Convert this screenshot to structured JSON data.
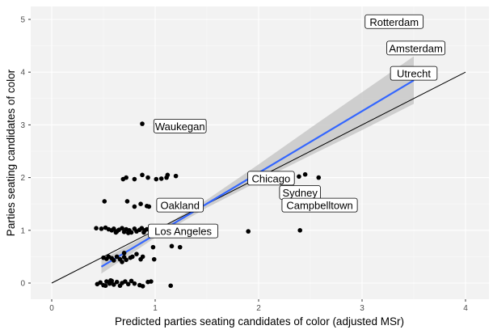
{
  "chart_data": {
    "type": "scatter",
    "title": "",
    "xlabel": "Predicted parties seating candidates of color (adjusted MSr)",
    "ylabel": "Parties seating candidates of color",
    "xlim": [
      -0.1,
      4.1
    ],
    "ylim": [
      -0.3,
      5.25
    ],
    "xticks": [
      "0",
      "1",
      "2",
      "3",
      "4"
    ],
    "yticks": [
      "0",
      "1",
      "2",
      "3",
      "4",
      "5"
    ],
    "grid": true,
    "background": "#f2f2f2",
    "colors": {
      "points": "#000000",
      "smooth": "#3366ff",
      "band": "#c8c8c8",
      "identity": "#000000"
    },
    "identity_line": {
      "x": [
        0,
        4
      ],
      "y": [
        0,
        4
      ]
    },
    "smooth": {
      "x": [
        0.48,
        1,
        1.5,
        2,
        2.5,
        3,
        3.5
      ],
      "y": [
        0.31,
        0.92,
        1.505,
        2.09,
        2.675,
        3.26,
        3.845
      ],
      "lower": [
        0.18,
        0.86,
        1.43,
        1.93,
        2.42,
        2.9,
        3.4
      ],
      "upper": [
        0.44,
        0.98,
        1.58,
        2.25,
        2.94,
        3.62,
        4.3
      ]
    },
    "points": [
      [
        0.69,
        1.97
      ],
      [
        0.72,
        2.0
      ],
      [
        0.8,
        1.97
      ],
      [
        0.875,
        2.05
      ],
      [
        0.93,
        2.0
      ],
      [
        1.01,
        1.97
      ],
      [
        1.06,
        1.98
      ],
      [
        1.11,
        2.0
      ],
      [
        1.12,
        2.05
      ],
      [
        1.2,
        2.03
      ],
      [
        0.51,
        1.55
      ],
      [
        0.73,
        1.55
      ],
      [
        0.8,
        1.45
      ],
      [
        0.86,
        1.5
      ],
      [
        0.92,
        1.46
      ],
      [
        0.94,
        1.45
      ],
      [
        0.43,
        1.04
      ],
      [
        0.48,
        1.03
      ],
      [
        0.52,
        1.05
      ],
      [
        0.55,
        1.02
      ],
      [
        0.58,
        1.0
      ],
      [
        0.6,
        1.03
      ],
      [
        0.63,
        0.98
      ],
      [
        0.65,
        1.01
      ],
      [
        0.68,
        1.04
      ],
      [
        0.7,
        0.97
      ],
      [
        0.72,
        1.02
      ],
      [
        0.75,
        1.0
      ],
      [
        0.77,
        0.96
      ],
      [
        0.8,
        1.03
      ],
      [
        0.82,
        0.98
      ],
      [
        0.85,
        1.01
      ],
      [
        0.87,
        1.04
      ],
      [
        0.89,
        0.96
      ],
      [
        0.9,
        1.0
      ],
      [
        0.92,
        1.02
      ],
      [
        0.62,
        0.96
      ],
      [
        0.74,
        0.95
      ],
      [
        0.875,
        3.02
      ],
      [
        0.5,
        0.48
      ],
      [
        0.53,
        0.46
      ],
      [
        0.55,
        0.5
      ],
      [
        0.58,
        0.47
      ],
      [
        0.6,
        0.43
      ],
      [
        0.63,
        0.5
      ],
      [
        0.66,
        0.45
      ],
      [
        0.68,
        0.4
      ],
      [
        0.7,
        0.49
      ],
      [
        0.72,
        0.44
      ],
      [
        0.76,
        0.48
      ],
      [
        0.78,
        0.5
      ],
      [
        0.82,
        0.55
      ],
      [
        0.86,
        0.45
      ],
      [
        0.88,
        0.5
      ],
      [
        0.98,
        0.68
      ],
      [
        0.99,
        0.45
      ],
      [
        1.16,
        0.7
      ],
      [
        1.24,
        0.68
      ],
      [
        0.7,
        0.57
      ],
      [
        0.44,
        -0.02
      ],
      [
        0.47,
        0.01
      ],
      [
        0.5,
        -0.04
      ],
      [
        0.53,
        0.03
      ],
      [
        0.56,
        -0.01
      ],
      [
        0.58,
        0.04
      ],
      [
        0.6,
        -0.03
      ],
      [
        0.63,
        0.02
      ],
      [
        0.66,
        -0.05
      ],
      [
        0.68,
        0.0
      ],
      [
        0.71,
        0.03
      ],
      [
        0.74,
        -0.02
      ],
      [
        0.77,
        0.04
      ],
      [
        0.8,
        -0.01
      ],
      [
        0.85,
        -0.04
      ],
      [
        0.88,
        -0.06
      ],
      [
        0.93,
        0.02
      ],
      [
        0.96,
        0.03
      ],
      [
        1.15,
        -0.05
      ],
      [
        0.52,
        -0.05
      ],
      [
        0.57,
        0.05
      ],
      [
        2.39,
        2.02
      ],
      [
        2.45,
        2.06
      ],
      [
        2.58,
        2.0
      ],
      [
        1.9,
        0.98
      ],
      [
        2.4,
        1.0
      ]
    ],
    "labels": [
      {
        "text": "Rotterdam",
        "x": 3.31,
        "y": 4.95
      },
      {
        "text": "Amsterdam",
        "x": 3.52,
        "y": 4.45
      },
      {
        "text": "Utrecht",
        "x": 3.5,
        "y": 3.97
      },
      {
        "text": "Waukegan",
        "x": 1.24,
        "y": 2.97
      },
      {
        "text": "Oakland",
        "x": 1.24,
        "y": 1.47
      },
      {
        "text": "Los Angeles",
        "x": 1.27,
        "y": 0.98
      },
      {
        "text": "Chicago",
        "x": 2.12,
        "y": 1.98
      },
      {
        "text": "Sydney",
        "x": 2.4,
        "y": 1.71
      },
      {
        "text": "Campbelltown",
        "x": 2.59,
        "y": 1.47
      }
    ]
  }
}
